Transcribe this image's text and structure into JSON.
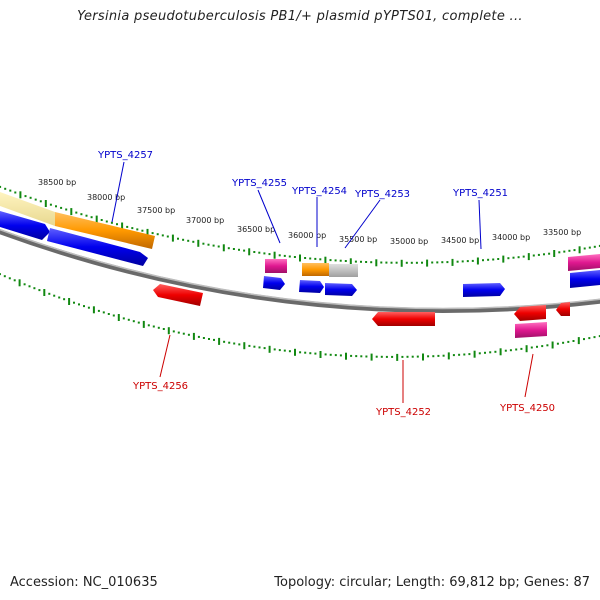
{
  "title": "Yersinia pseudotuberculosis PB1/+ plasmid pYPTS01, complete ...",
  "footer": {
    "accession": "Accession: NC_010635",
    "summary": "Topology: circular; Length: 69,812 bp; Genes: 87"
  },
  "colors": {
    "forward_gene": "#0000ee",
    "reverse_gene": "#ee0000",
    "pink_gene": "#e01890",
    "orange_feature": "#ff9900",
    "gray_feature": "#bbbbbb",
    "backbone": "#808080",
    "tick": "#118811",
    "forward_label": "#0000cc",
    "reverse_label": "#cc0000"
  },
  "ruler_labels": [
    "38500 bp",
    "38000 bp",
    "37500 bp",
    "37000 bp",
    "36500 bp",
    "36000 bp",
    "35500 bp",
    "35000 bp",
    "34500 bp",
    "34000 bp",
    "33500 bp"
  ],
  "gene_labels": {
    "forward": [
      "YPTS_4257",
      "YPTS_4255",
      "YPTS_4254",
      "YPTS_4253",
      "YPTS_4251"
    ],
    "reverse": [
      "YPTS_4256",
      "YPTS_4252",
      "YPTS_4250"
    ]
  }
}
